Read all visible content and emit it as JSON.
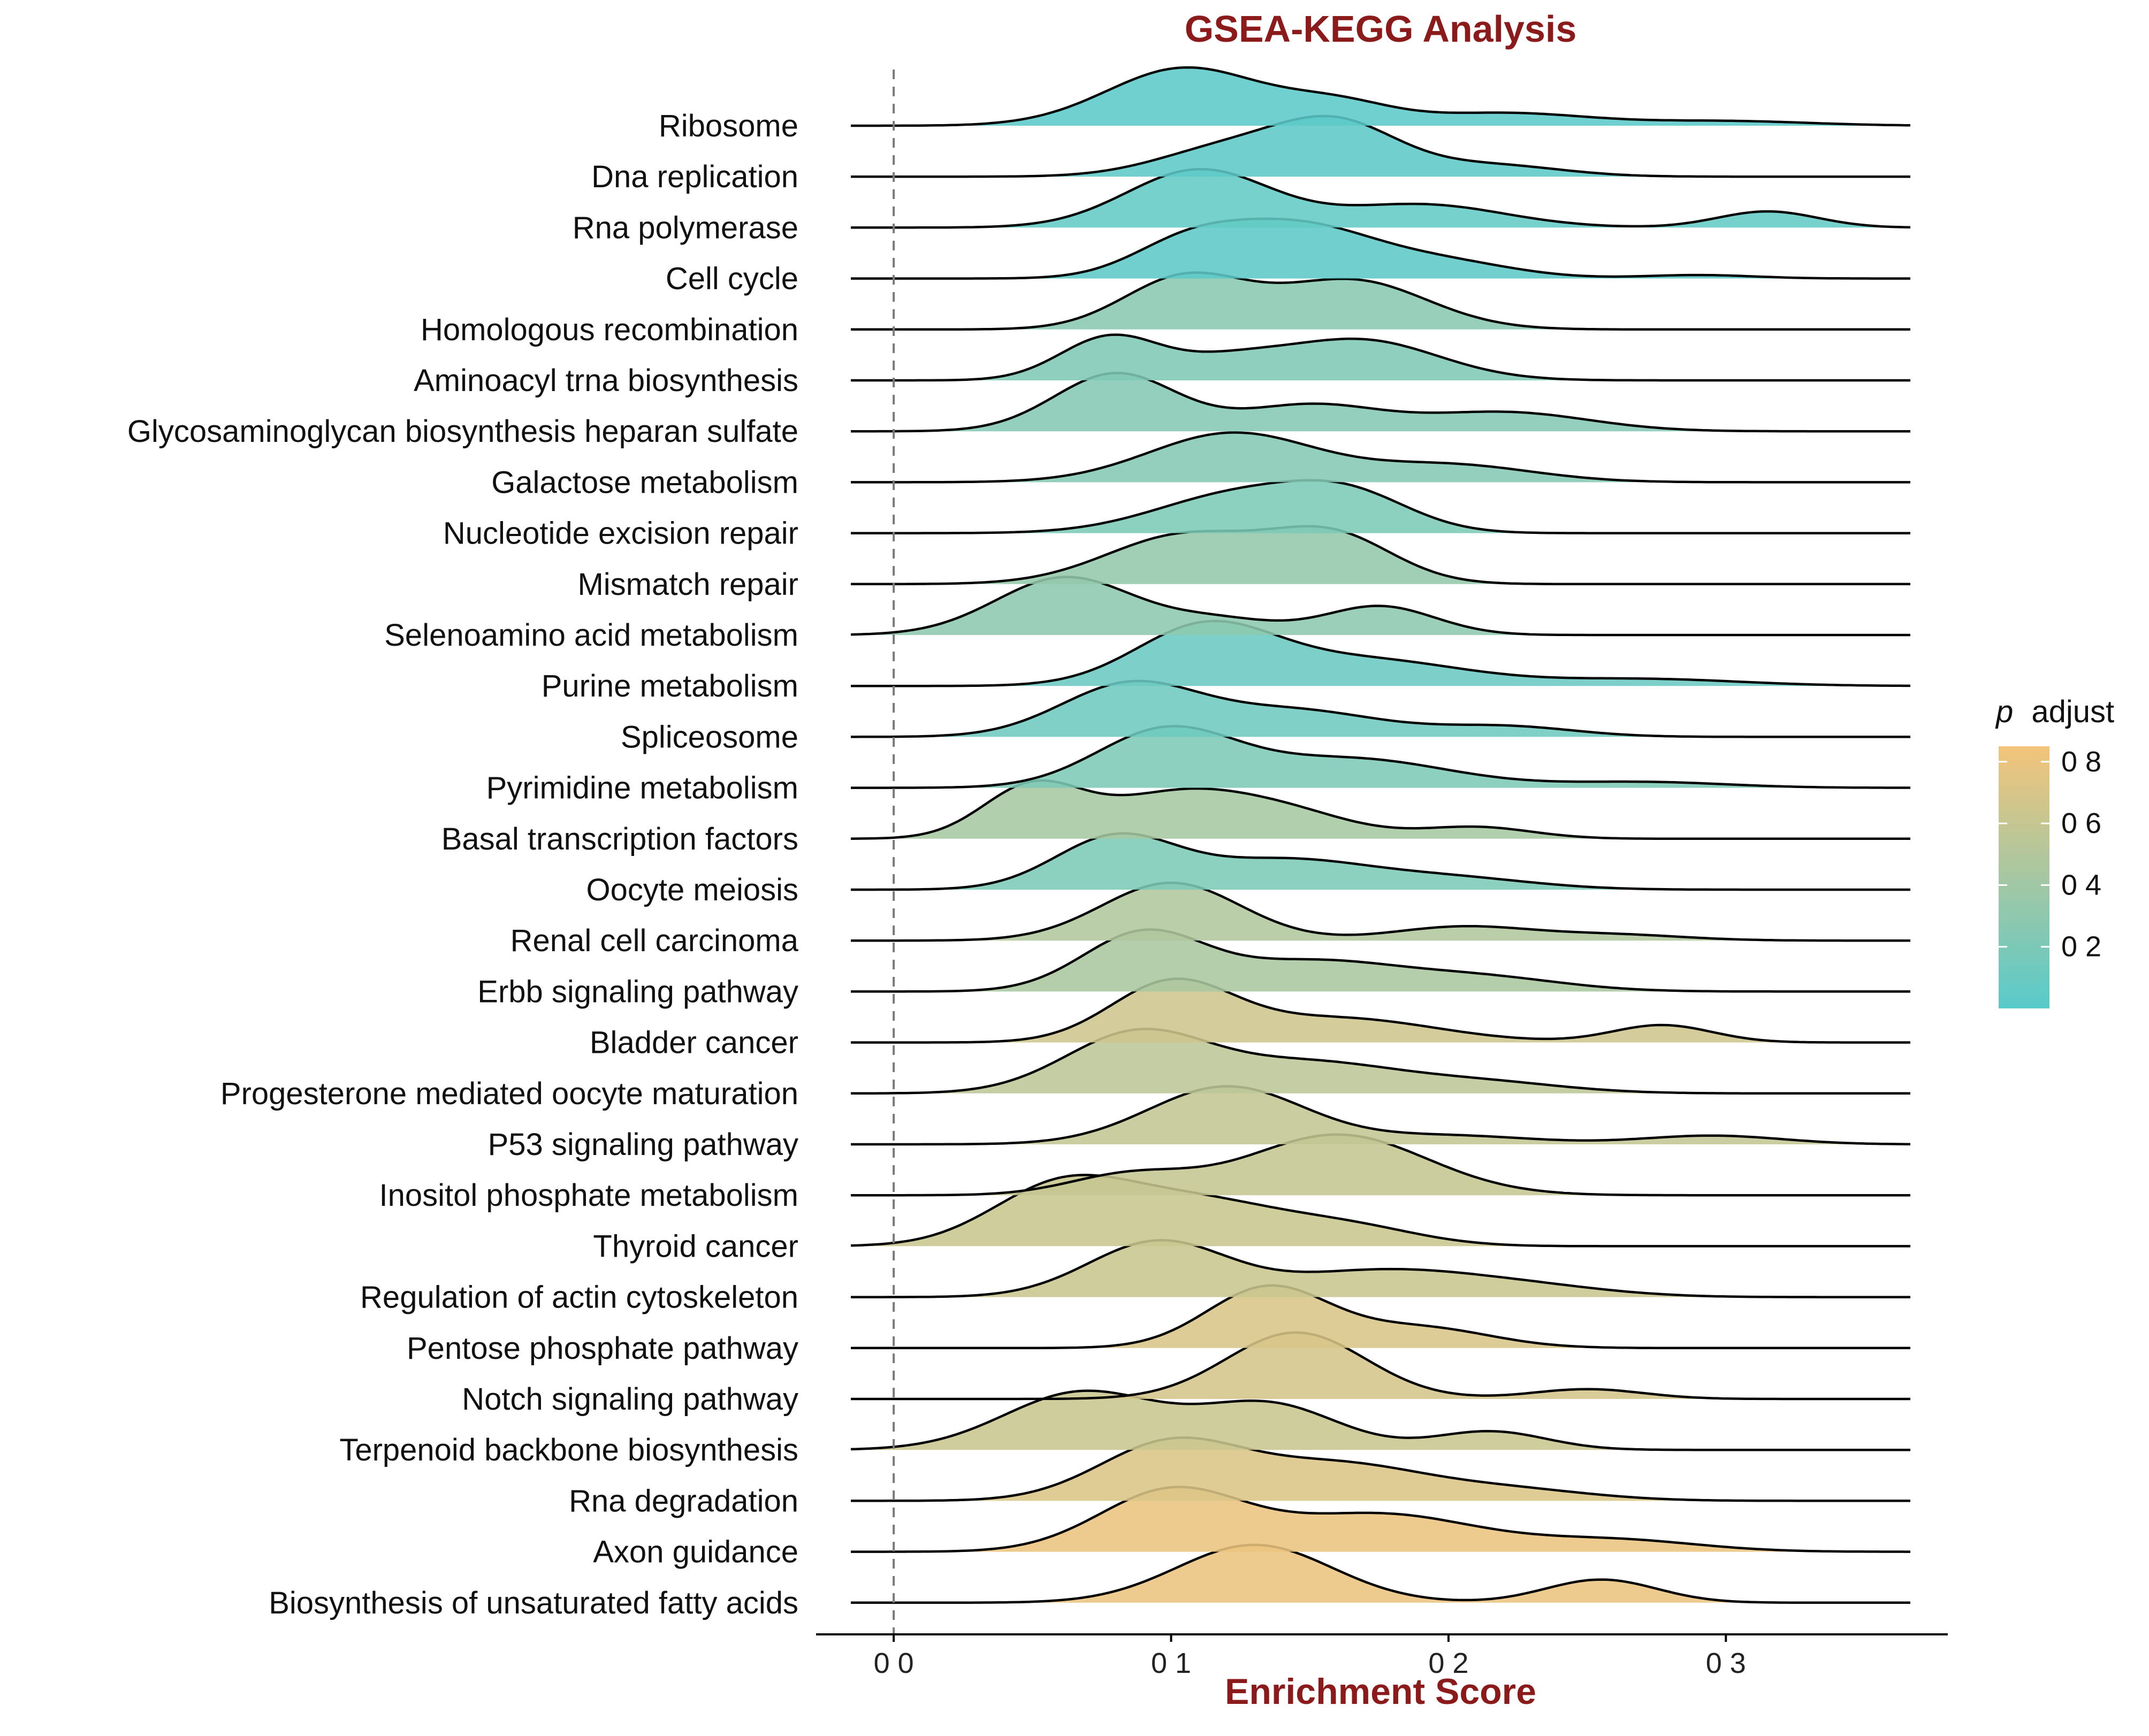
{
  "chart_data": {
    "type": "ridgeline",
    "title": "GSEA-KEGG Analysis",
    "xlabel": "Enrichment Score",
    "ylabel": "",
    "xlim": [
      -0.028,
      0.38
    ],
    "x_ticks": [
      0.0,
      0.1,
      0.2,
      0.3
    ],
    "x_tick_labels": [
      "0 0",
      "0 1",
      "0 2",
      "0 3"
    ],
    "zero_reference_line": 0.0,
    "grid": false,
    "title_color": "#8B1A1A",
    "xlabel_color": "#8B1A1A",
    "legend": {
      "title_italic": "p",
      "title": "adjust",
      "placement": "right",
      "range": [
        0.0,
        0.85
      ],
      "ticks": [
        0.2,
        0.4,
        0.6,
        0.8
      ],
      "tick_labels": [
        "0 2",
        "0 4",
        "0 6",
        "0 8"
      ],
      "low_color": "#58CACA",
      "high_color": "#F3C47A"
    },
    "series": [
      {
        "name": "Ribosome",
        "p_adjust": 0.02,
        "peaks": [
          [
            0.105,
            1.0,
            0.028
          ],
          [
            0.16,
            0.35,
            0.02
          ],
          [
            0.22,
            0.22,
            0.03
          ],
          [
            0.3,
            0.08,
            0.03
          ]
        ]
      },
      {
        "name": "Dna replication",
        "p_adjust": 0.03,
        "peaks": [
          [
            0.12,
            0.48,
            0.025
          ],
          [
            0.16,
            0.88,
            0.022
          ],
          [
            0.215,
            0.2,
            0.025
          ]
        ]
      },
      {
        "name": "Rna polymerase",
        "p_adjust": 0.06,
        "peaks": [
          [
            0.11,
            1.0,
            0.026
          ],
          [
            0.19,
            0.4,
            0.03
          ],
          [
            0.315,
            0.28,
            0.018
          ]
        ]
      },
      {
        "name": "Cell cycle",
        "p_adjust": 0.03,
        "peaks": [
          [
            0.105,
            0.5,
            0.02
          ],
          [
            0.145,
            0.92,
            0.028
          ],
          [
            0.2,
            0.25,
            0.025
          ],
          [
            0.29,
            0.06,
            0.02
          ]
        ]
      },
      {
        "name": "Homologous recombination",
        "p_adjust": 0.27,
        "peaks": [
          [
            0.105,
            0.9,
            0.022
          ],
          [
            0.165,
            0.85,
            0.027
          ]
        ]
      },
      {
        "name": "Aminoacyl trna biosynthesis",
        "p_adjust": 0.22,
        "peaks": [
          [
            0.078,
            0.75,
            0.018
          ],
          [
            0.12,
            0.3,
            0.02
          ],
          [
            0.168,
            0.7,
            0.028
          ]
        ]
      },
      {
        "name": "Glycosaminoglycan biosynthesis heparan sulfate",
        "p_adjust": 0.24,
        "peaks": [
          [
            0.08,
            1.0,
            0.022
          ],
          [
            0.15,
            0.45,
            0.025
          ],
          [
            0.22,
            0.33,
            0.03
          ]
        ]
      },
      {
        "name": "Galactose metabolism",
        "p_adjust": 0.24,
        "peaks": [
          [
            0.122,
            0.85,
            0.03
          ],
          [
            0.2,
            0.3,
            0.03
          ]
        ]
      },
      {
        "name": "Nucleotide excision repair",
        "p_adjust": 0.2,
        "peaks": [
          [
            0.125,
            0.68,
            0.03
          ],
          [
            0.165,
            0.55,
            0.022
          ]
        ]
      },
      {
        "name": "Mismatch repair",
        "p_adjust": 0.33,
        "peaks": [
          [
            0.105,
            0.85,
            0.028
          ],
          [
            0.158,
            0.82,
            0.022
          ]
        ]
      },
      {
        "name": "Selenoamino acid metabolism",
        "p_adjust": 0.29,
        "peaks": [
          [
            0.062,
            1.0,
            0.025
          ],
          [
            0.118,
            0.25,
            0.02
          ],
          [
            0.175,
            0.5,
            0.02
          ]
        ]
      },
      {
        "name": "Purine metabolism",
        "p_adjust": 0.1,
        "peaks": [
          [
            0.112,
            1.0,
            0.025
          ],
          [
            0.17,
            0.45,
            0.035
          ],
          [
            0.27,
            0.12,
            0.035
          ]
        ]
      },
      {
        "name": "Spliceosome",
        "p_adjust": 0.12,
        "peaks": [
          [
            0.085,
            0.9,
            0.025
          ],
          [
            0.145,
            0.45,
            0.03
          ],
          [
            0.22,
            0.18,
            0.025
          ]
        ]
      },
      {
        "name": "Pyrimidine metabolism",
        "p_adjust": 0.21,
        "peaks": [
          [
            0.098,
            0.98,
            0.025
          ],
          [
            0.165,
            0.5,
            0.035
          ],
          [
            0.27,
            0.1,
            0.03
          ]
        ]
      },
      {
        "name": "Basal transcription factors",
        "p_adjust": 0.43,
        "peaks": [
          [
            0.05,
            0.9,
            0.018
          ],
          [
            0.1,
            0.7,
            0.025
          ],
          [
            0.14,
            0.45,
            0.025
          ],
          [
            0.21,
            0.2,
            0.02
          ]
        ]
      },
      {
        "name": "Oocyte meiosis",
        "p_adjust": 0.2,
        "peaks": [
          [
            0.08,
            0.9,
            0.022
          ],
          [
            0.14,
            0.5,
            0.03
          ],
          [
            0.2,
            0.2,
            0.03
          ]
        ]
      },
      {
        "name": "Renal cell carcinoma",
        "p_adjust": 0.48,
        "peaks": [
          [
            0.1,
            1.0,
            0.025
          ],
          [
            0.205,
            0.24,
            0.025
          ],
          [
            0.26,
            0.1,
            0.025
          ]
        ]
      },
      {
        "name": "Erbb signaling pathway",
        "p_adjust": 0.45,
        "peaks": [
          [
            0.09,
            1.0,
            0.022
          ],
          [
            0.15,
            0.5,
            0.03
          ],
          [
            0.21,
            0.25,
            0.03
          ]
        ]
      },
      {
        "name": "Bladder cancer",
        "p_adjust": 0.65,
        "peaks": [
          [
            0.1,
            1.0,
            0.022
          ],
          [
            0.16,
            0.42,
            0.035
          ],
          [
            0.277,
            0.3,
            0.018
          ]
        ]
      },
      {
        "name": "Progesterone mediated oocyte maturation",
        "p_adjust": 0.55,
        "peaks": [
          [
            0.088,
            1.05,
            0.026
          ],
          [
            0.15,
            0.5,
            0.03
          ],
          [
            0.21,
            0.2,
            0.03
          ]
        ]
      },
      {
        "name": "P53 signaling pathway",
        "p_adjust": 0.58,
        "peaks": [
          [
            0.12,
            1.0,
            0.028
          ],
          [
            0.2,
            0.15,
            0.03
          ],
          [
            0.295,
            0.15,
            0.025
          ]
        ]
      },
      {
        "name": "Inositol phosphate metabolism",
        "p_adjust": 0.6,
        "peaks": [
          [
            0.085,
            0.35,
            0.022
          ],
          [
            0.16,
            1.05,
            0.032
          ]
        ]
      },
      {
        "name": "Thyroid cancer",
        "p_adjust": 0.62,
        "peaks": [
          [
            0.06,
            1.0,
            0.025
          ],
          [
            0.11,
            0.75,
            0.03
          ],
          [
            0.165,
            0.3,
            0.025
          ]
        ]
      },
      {
        "name": "Regulation of actin cytoskeleton",
        "p_adjust": 0.62,
        "peaks": [
          [
            0.095,
            0.95,
            0.025
          ],
          [
            0.175,
            0.45,
            0.035
          ],
          [
            0.23,
            0.15,
            0.03
          ]
        ]
      },
      {
        "name": "Pentose phosphate pathway",
        "p_adjust": 0.7,
        "peaks": [
          [
            0.135,
            1.05,
            0.022
          ],
          [
            0.19,
            0.35,
            0.025
          ]
        ]
      },
      {
        "name": "Notch signaling pathway",
        "p_adjust": 0.68,
        "peaks": [
          [
            0.145,
            1.15,
            0.025
          ],
          [
            0.25,
            0.17,
            0.02
          ]
        ]
      },
      {
        "name": "Terpenoid backbone biosynthesis",
        "p_adjust": 0.62,
        "peaks": [
          [
            0.068,
            1.0,
            0.028
          ],
          [
            0.135,
            0.78,
            0.025
          ],
          [
            0.215,
            0.32,
            0.02
          ]
        ]
      },
      {
        "name": "Rna degradation",
        "p_adjust": 0.72,
        "peaks": [
          [
            0.1,
            1.0,
            0.026
          ],
          [
            0.16,
            0.6,
            0.03
          ],
          [
            0.22,
            0.2,
            0.03
          ]
        ]
      },
      {
        "name": "Axon guidance",
        "p_adjust": 0.8,
        "peaks": [
          [
            0.1,
            1.05,
            0.026
          ],
          [
            0.175,
            0.65,
            0.035
          ],
          [
            0.26,
            0.2,
            0.03
          ]
        ]
      },
      {
        "name": "Biosynthesis of unsaturated fatty acids",
        "p_adjust": 0.8,
        "peaks": [
          [
            0.13,
            1.0,
            0.028
          ],
          [
            0.255,
            0.4,
            0.02
          ]
        ]
      }
    ]
  }
}
